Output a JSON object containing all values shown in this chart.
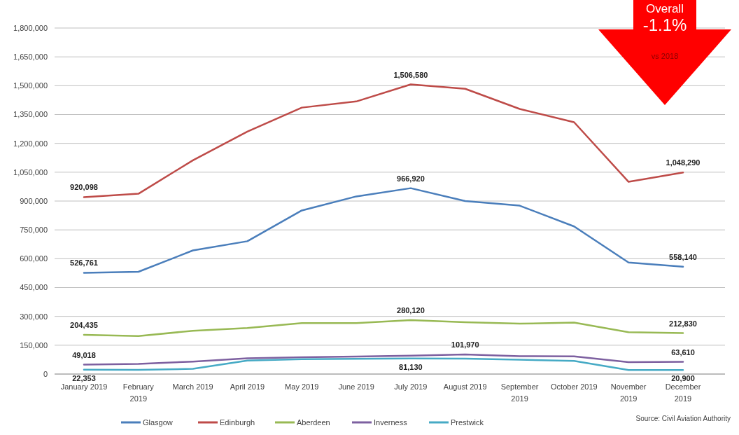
{
  "chart_data": {
    "type": "line",
    "categories": [
      "January 2019",
      "February 2019",
      "March 2019",
      "April 2019",
      "May 2019",
      "June 2019",
      "July 2019",
      "August 2019",
      "September 2019",
      "October 2019",
      "November 2019",
      "December 2019"
    ],
    "series": [
      {
        "name": "Glasgow",
        "color": "#4a7ebb",
        "values": [
          526761,
          532000,
          643000,
          691000,
          851000,
          924000,
          966920,
          900000,
          876000,
          768000,
          580000,
          558140
        ],
        "value_labels": [
          "526,761",
          null,
          null,
          null,
          null,
          null,
          "966,920",
          null,
          null,
          null,
          null,
          "558,140"
        ]
      },
      {
        "name": "Edinburgh",
        "color": "#be4b48",
        "values": [
          920098,
          938000,
          1112000,
          1261000,
          1386000,
          1418000,
          1506580,
          1484000,
          1379000,
          1310000,
          1000000,
          1048290
        ],
        "value_labels": [
          "920,098",
          null,
          null,
          null,
          null,
          null,
          "1,506,580",
          null,
          null,
          null,
          null,
          "1,048,290"
        ]
      },
      {
        "name": "Aberdeen",
        "color": "#98b954",
        "values": [
          204435,
          198000,
          225000,
          240000,
          265000,
          265000,
          280120,
          270000,
          262000,
          268000,
          218000,
          212830
        ],
        "value_labels": [
          "204,435",
          null,
          null,
          null,
          null,
          null,
          "280,120",
          null,
          null,
          null,
          null,
          "212,830"
        ]
      },
      {
        "name": "Inverness",
        "color": "#7d60a0",
        "values": [
          49018,
          53000,
          65000,
          82000,
          87000,
          91000,
          96000,
          101970,
          93000,
          92000,
          62000,
          63610
        ],
        "value_labels": [
          "49,018",
          null,
          null,
          null,
          null,
          null,
          null,
          "101,970",
          null,
          null,
          null,
          "63,610"
        ]
      },
      {
        "name": "Prestwick",
        "color": "#46aac5",
        "values": [
          22353,
          22000,
          27000,
          70000,
          77000,
          79000,
          81130,
          80000,
          75000,
          68000,
          21000,
          20900
        ],
        "value_labels": [
          "22,353",
          null,
          null,
          null,
          null,
          null,
          "81,130",
          null,
          null,
          null,
          null,
          "20,900"
        ]
      }
    ],
    "ylim": [
      0,
      1800000
    ],
    "yticks": [
      {
        "value": 0,
        "label": "0"
      },
      {
        "value": 150000,
        "label": "150,000"
      },
      {
        "value": 300000,
        "label": "300,000"
      },
      {
        "value": 450000,
        "label": "450,000"
      },
      {
        "value": 600000,
        "label": "600,000"
      },
      {
        "value": 750000,
        "label": "750,000"
      },
      {
        "value": 900000,
        "label": "900,000"
      },
      {
        "value": 1050000,
        "label": "1,050,000"
      },
      {
        "value": 1200000,
        "label": "1,200,000"
      },
      {
        "value": 1350000,
        "label": "1,350,000"
      },
      {
        "value": 1500000,
        "label": "1,500,000"
      },
      {
        "value": 1650000,
        "label": "1,650,000"
      },
      {
        "value": 1800000,
        "label": "1,800,000"
      }
    ],
    "grid": "y",
    "legend": "bottom",
    "annotations": [
      "Overall",
      "-1.1%",
      "vs 2018",
      "Source: Civil Aviation Authority"
    ]
  }
}
